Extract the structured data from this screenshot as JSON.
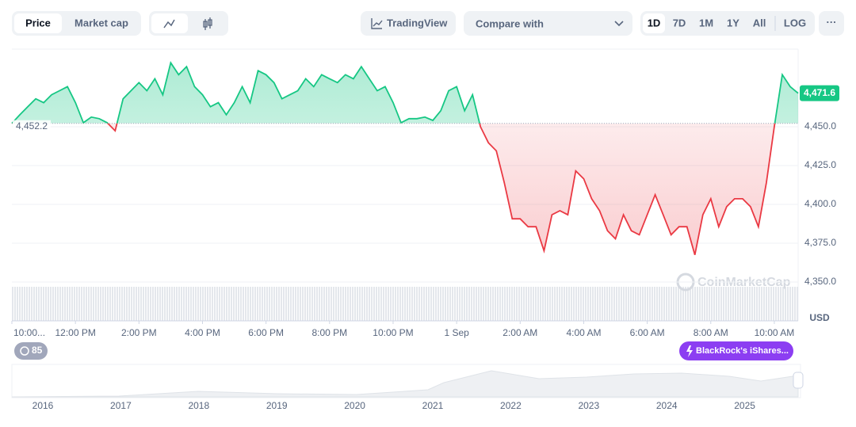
{
  "toolbar": {
    "tabs": [
      "Price",
      "Market cap"
    ],
    "tradingview": "TradingView",
    "compare": "Compare with",
    "ranges": [
      "1D",
      "7D",
      "1M",
      "1Y",
      "All",
      "LOG"
    ],
    "more": "···"
  },
  "chart_data": {
    "type": "line",
    "x": [
      10,
      10.25,
      10.5,
      10.75,
      11,
      11.25,
      11.5,
      11.75,
      12,
      12.25,
      12.5,
      12.75,
      13,
      13.25,
      13.5,
      13.75,
      14,
      14.25,
      14.5,
      14.75,
      15,
      15.25,
      15.5,
      15.75,
      16,
      16.25,
      16.5,
      16.75,
      17,
      17.25,
      17.5,
      17.75,
      18,
      18.25,
      18.5,
      18.75,
      19,
      19.25,
      19.5,
      19.75,
      20,
      20.25,
      20.5,
      20.75,
      21,
      21.25,
      21.5,
      21.75,
      22,
      22.25,
      22.5,
      22.75,
      23,
      23.25,
      23.5,
      23.75,
      24,
      24.25,
      24.5,
      24.75,
      25,
      25.25,
      25.5,
      25.75,
      26,
      26.25,
      26.5,
      26.75,
      27,
      27.25,
      27.5,
      27.75,
      28,
      28.25,
      28.5,
      28.75,
      29,
      29.25,
      29.5,
      29.75,
      30,
      30.25,
      30.5,
      30.75,
      31,
      31.25,
      31.5,
      31.75,
      32,
      32.25,
      32.5,
      32.75,
      33,
      33.25,
      33.5,
      33.75,
      34,
      34.25,
      34.5,
      34.75
    ],
    "values": [
      4452.2,
      4457.7,
      4462.9,
      4468.0,
      4465.5,
      4470.6,
      4473.2,
      4475.8,
      4465.5,
      4452.6,
      4456.2,
      4455.2,
      4452.6,
      4447.4,
      4468.0,
      4473.2,
      4478.4,
      4473.2,
      4480.9,
      4470.6,
      4491.2,
      4483.5,
      4488.7,
      4475.8,
      4470.6,
      4462.9,
      4465.5,
      4457.7,
      4465.5,
      4475.8,
      4465.5,
      4486.1,
      4483.5,
      4478.4,
      4468.0,
      4470.6,
      4473.2,
      4480.9,
      4475.8,
      4483.5,
      4480.9,
      4478.4,
      4483.5,
      4480.9,
      4488.7,
      4480.9,
      4473.2,
      4475.8,
      4465.5,
      4452.6,
      4455.2,
      4455.2,
      4456.2,
      4454.1,
      4460.3,
      4473.2,
      4475.8,
      4460.3,
      4470.6,
      4450.0,
      4439.7,
      4434.5,
      4413.9,
      4390.7,
      4390.7,
      4385.6,
      4385.6,
      4370.1,
      4393.3,
      4395.9,
      4393.3,
      4421.6,
      4416.5,
      4403.6,
      4395.9,
      4383.0,
      4377.8,
      4393.3,
      4383.0,
      4380.4,
      4393.3,
      4406.2,
      4393.3,
      4380.4,
      4385.6,
      4385.6,
      4367.5,
      4393.3,
      4403.6,
      4385.6,
      4398.5,
      4403.6,
      4403.6,
      4398.5,
      4385.6,
      4413.9,
      4450.0,
      4483.5,
      4475.8,
      4471.6
    ],
    "baseline": {
      "value": 4452.2,
      "label": "4,452.2"
    },
    "last_price": {
      "value": 4471.6,
      "label": "4,471.6"
    },
    "up_color": "#16c784",
    "down_color": "#ea3943",
    "xlim": [
      10,
      34.75
    ],
    "xticks": [
      {
        "value": 10,
        "label": "10:00..."
      },
      {
        "value": 12,
        "label": "12:00 PM"
      },
      {
        "value": 14,
        "label": "2:00 PM"
      },
      {
        "value": 16,
        "label": "4:00 PM"
      },
      {
        "value": 18,
        "label": "6:00 PM"
      },
      {
        "value": 20,
        "label": "8:00 PM"
      },
      {
        "value": 22,
        "label": "10:00 PM"
      },
      {
        "value": 24,
        "label": "1 Sep"
      },
      {
        "value": 26,
        "label": "2:00 AM"
      },
      {
        "value": 28,
        "label": "4:00 AM"
      },
      {
        "value": 30,
        "label": "6:00 AM"
      },
      {
        "value": 32,
        "label": "8:00 AM"
      },
      {
        "value": 34,
        "label": "10:00 AM"
      }
    ],
    "ylim": [
      4325,
      4500
    ],
    "yticks": [
      {
        "value": 4350,
        "label": "4,350.0"
      },
      {
        "value": 4375,
        "label": "4,375.0"
      },
      {
        "value": 4400,
        "label": "4,400.0"
      },
      {
        "value": 4425,
        "label": "4,425.0"
      },
      {
        "value": 4450,
        "label": "4,450.0"
      }
    ],
    "grid": true,
    "currency": "USD",
    "watermark": "CoinMarketCap",
    "events_badge": "85",
    "news_badge": "BlackRock's iShares...",
    "navigator_years": [
      "2016",
      "2017",
      "2018",
      "2019",
      "2020",
      "2021",
      "2022",
      "2023",
      "2024",
      "2025"
    ]
  }
}
